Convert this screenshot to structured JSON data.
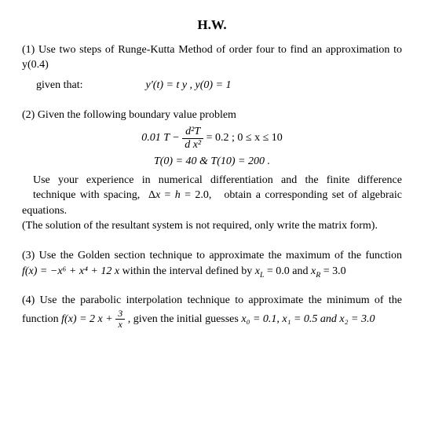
{
  "title": "H.W.",
  "p1": {
    "line1": "(1) Use two steps of Runge-Kutta Method of order four to find an approximation to y(0.4)",
    "given_label": "given that:",
    "equation": "y′(t) = t y ,  y(0) = 1"
  },
  "p2": {
    "intro": "(2) Given the following boundary value problem",
    "eq_left": "0.01 T − ",
    "frac_num": "d²T",
    "frac_den": "d x²",
    "eq_right": " = 0.2  ;   0 ≤ x ≤ 10",
    "bc": "T(0) = 40  &  T(10) = 200 .",
    "body1": "Use your experience in numerical differentiation and the finite difference technique with spacing,  Δx = h = 2.0,   obtain a corresponding set of algebraic equations.",
    "body2": "(The solution of the resultant system is not required, only write the matrix form)."
  },
  "p3": {
    "text_a": "(3) Use the Golden section technique to approximate the maximum of the function ",
    "fx": "f(x) =  −x⁶ +  x⁴ + 12 x",
    "text_b": "  within the interval defined by ",
    "xl": "x",
    "xl_sub": "L",
    "xl_val": " = 0.0 and ",
    "xr": "x",
    "xr_sub": "R",
    "xr_val": " = 3.0"
  },
  "p4": {
    "text_a": "(4)  Use the parabolic interpolation technique to approximate the minimum of the function  ",
    "fx_left": "f(x) =  2 x + ",
    "frac_num": "3",
    "frac_den": "x",
    "text_b": " , given the initial guesses ",
    "x0": "x₀ = 0.1, x₁ = 0.5 and x₂ = 3.0"
  }
}
